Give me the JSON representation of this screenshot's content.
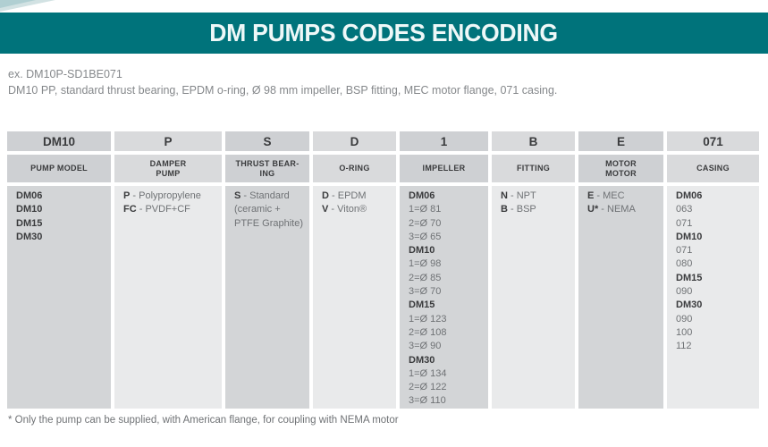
{
  "header": {
    "title": "DM PUMPS CODES ENCODING"
  },
  "example": {
    "code_line": "ex. DM10P-SD1BE071",
    "description": "DM10 PP, standard thrust bearing, EPDM o-ring, Ø 98 mm impeller, BSP fitting, MEC motor flange, 071 casing."
  },
  "footnote": "* Only the pump can be supplied, with American flange, for coupling with NEMA motor",
  "colors": {
    "title_bar_teal": "#00737b",
    "title_text": "#eef8f8",
    "header_cell_dark": "#ced0d3",
    "header_cell_light": "#d9dadc",
    "body_cell_dark": "#d3d5d7",
    "body_cell_light": "#e9eaeb",
    "text_dark": "#3a3b3d",
    "text_gray": "#6f7275"
  },
  "table": {
    "columns": [
      {
        "code": "DM10",
        "label_lines": [
          "PUMP MODEL"
        ],
        "body": [
          {
            "b": "DM06"
          },
          {
            "b": "DM10"
          },
          {
            "b": "DM15"
          },
          {
            "b": "DM30"
          }
        ]
      },
      {
        "code": "P",
        "label_lines": [
          "DAMPER",
          "PUMP"
        ],
        "body": [
          {
            "b": "P",
            "r": "- Polypropylene"
          },
          {
            "b": "FC",
            "r": "- PVDF+CF"
          }
        ]
      },
      {
        "code": "S",
        "label_lines": [
          "THRUST BEAR-",
          "ING"
        ],
        "body": [
          {
            "b": "S",
            "r": "- Standard"
          },
          {
            "r": "(ceramic +"
          },
          {
            "r": "PTFE Graphite)"
          }
        ]
      },
      {
        "code": "D",
        "label_lines": [
          "O-RING"
        ],
        "body": [
          {
            "b": "D",
            "r": "- EPDM"
          },
          {
            "b": "V",
            "r": "- Viton®"
          }
        ]
      },
      {
        "code": "1",
        "label_lines": [
          "IMPELLER"
        ],
        "body": [
          {
            "b": "DM06"
          },
          {
            "r": "1=Ø 81"
          },
          {
            "r": "2=Ø 70"
          },
          {
            "r": "3=Ø 65"
          },
          {
            "b": "DM10"
          },
          {
            "r": "1=Ø 98"
          },
          {
            "r": "2=Ø 85"
          },
          {
            "r": "3=Ø 70"
          },
          {
            "b": "DM15"
          },
          {
            "r": "1=Ø 123"
          },
          {
            "r": "2=Ø 108"
          },
          {
            "r": "3=Ø 90"
          },
          {
            "b": "DM30"
          },
          {
            "r": "1=Ø 134"
          },
          {
            "r": "2=Ø 122"
          },
          {
            "r": "3=Ø 110"
          }
        ]
      },
      {
        "code": "B",
        "label_lines": [
          "FITTING"
        ],
        "body": [
          {
            "b": "N",
            "r": "- NPT"
          },
          {
            "b": "B",
            "r": "- BSP"
          }
        ]
      },
      {
        "code": "E",
        "label_lines": [
          "MOTOR",
          "MOTOR"
        ],
        "body": [
          {
            "b": "E",
            "r": "- MEC"
          },
          {
            "b": "U*",
            "r": "- NEMA"
          }
        ]
      },
      {
        "code": "071",
        "label_lines": [
          "CASING"
        ],
        "body": [
          {
            "b": "DM06"
          },
          {
            "r": "063"
          },
          {
            "r": "071"
          },
          {
            "b": "DM10"
          },
          {
            "r": "071"
          },
          {
            "r": "080"
          },
          {
            "b": "DM15"
          },
          {
            "r": "090"
          },
          {
            "b": "DM30"
          },
          {
            "r": "090"
          },
          {
            "r": "100"
          },
          {
            "r": "112"
          }
        ]
      }
    ]
  }
}
